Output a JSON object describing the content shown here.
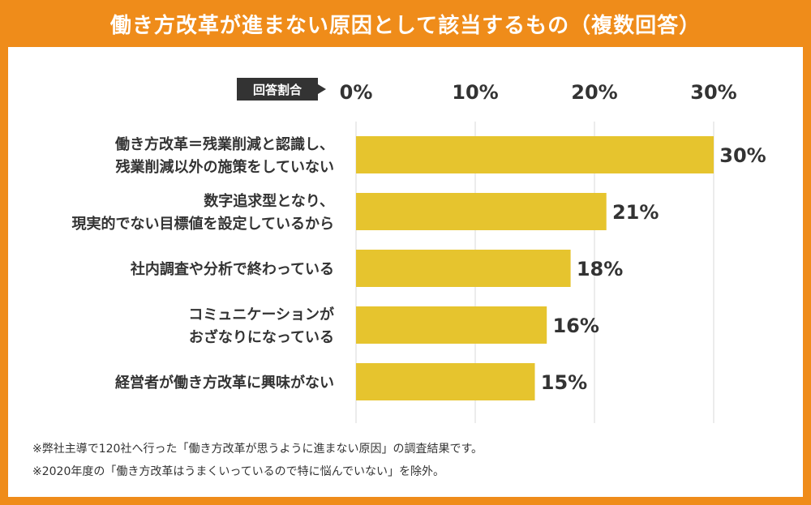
{
  "title": "働き方改革が進まない原因として該当するもの（複数回答）",
  "axis_badge": "回答割合",
  "colors": {
    "frame": "#ef8c1a",
    "bar": "#e6c42e",
    "grid": "#d9d9d9",
    "text": "#333333"
  },
  "chart_data": {
    "type": "bar",
    "orientation": "horizontal",
    "title": "働き方改革が進まない原因として該当するもの（複数回答）",
    "xlabel": "回答割合",
    "xlim": [
      0,
      30
    ],
    "ticks": [
      "0%",
      "10%",
      "20%",
      "30%"
    ],
    "tick_values": [
      0,
      10,
      20,
      30
    ],
    "grid": true,
    "categories": [
      [
        "働き方改革＝残業削減と認識し、",
        "残業削減以外の施策をしていない"
      ],
      [
        "数字追求型となり、",
        "現実的でない目標値を設定しているから"
      ],
      [
        "社内調査や分析で終わっている"
      ],
      [
        "コミュニケーションが",
        "おざなりになっている"
      ],
      [
        "経営者が働き方改革に興味がない"
      ]
    ],
    "values": [
      30,
      21,
      18,
      16,
      15
    ],
    "value_labels": [
      "30%",
      "21%",
      "18%",
      "16%",
      "15%"
    ]
  },
  "footnotes": [
    "※弊社主導で120社へ行った「働き方改革が思うように進まない原因」の調査結果です。",
    "※2020年度の「働き方改革はうまくいっているので特に悩んでいない」を除外。"
  ]
}
